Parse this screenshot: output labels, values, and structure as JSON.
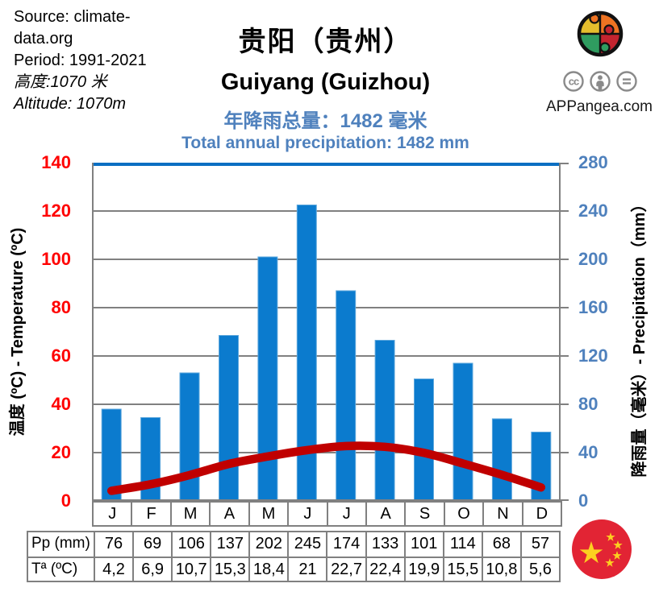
{
  "info": {
    "line1": "Source: climate-",
    "line2": "data.org",
    "line3": "Period: 1991-2021",
    "line4": "高度:1070 米",
    "line5": "Altitude: 1070m"
  },
  "branding": {
    "site": "APPangea.com",
    "logo": "puzzle-globe-logo",
    "license_icons": [
      "cc",
      "attribution-person",
      "no-derivatives-equals"
    ]
  },
  "chart_data": {
    "type": "bar+line",
    "title_zh": "贵阳（贵州）",
    "title_en": "Guiyang (Guizhou)",
    "subtitle_zh": "年降雨总量：1482 毫米",
    "subtitle_en": "Total annual precipitation: 1482 mm",
    "total_annual_precipitation_mm": 1482,
    "categories": [
      "J",
      "F",
      "M",
      "A",
      "M",
      "J",
      "J",
      "A",
      "S",
      "O",
      "N",
      "D"
    ],
    "series": [
      {
        "name": "Pp (mm)",
        "type": "bar",
        "color": "#0b7bce",
        "values": [
          76,
          69,
          106,
          137,
          202,
          245,
          174,
          133,
          101,
          114,
          68,
          57
        ]
      },
      {
        "name": "Tª (ºC)",
        "type": "line",
        "color": "#c00000",
        "values": [
          4.2,
          6.9,
          10.7,
          15.3,
          18.4,
          21,
          22.7,
          22.4,
          19.9,
          15.5,
          10.8,
          5.6
        ]
      }
    ],
    "left_axis": {
      "title": "温度 (ºC) - Temperature  (ºC)",
      "min": 0,
      "max": 140,
      "step": 20,
      "ticks": [
        "140",
        "120",
        "100",
        "80",
        "60",
        "40",
        "20",
        "0"
      ],
      "color": "#ff0000"
    },
    "right_axis": {
      "title": "降雨量（毫米）- Precipitation（mm）",
      "min": 0,
      "max": 280,
      "step": 40,
      "ticks": [
        "280",
        "240",
        "200",
        "160",
        "120",
        "80",
        "40",
        "0"
      ],
      "color": "#4f81bd"
    },
    "grid": true,
    "legend": "none",
    "colors": {
      "bar": "#0b7bce",
      "bar_edge": "#5fa8dd",
      "temp_line": "#c00000",
      "gridline": "#808080",
      "plot_top_border": "#0b6fc2"
    }
  },
  "table": {
    "rows": [
      {
        "label": "Pp (mm)",
        "values": [
          "76",
          "69",
          "106",
          "137",
          "202",
          "245",
          "174",
          "133",
          "101",
          "114",
          "68",
          "57"
        ]
      },
      {
        "label": "Tª (ºC)",
        "values": [
          "4,2",
          "6,9",
          "10,7",
          "15,3",
          "18,4",
          "21",
          "22,7",
          "22,4",
          "19,9",
          "15,5",
          "10,8",
          "5,6"
        ]
      }
    ]
  }
}
